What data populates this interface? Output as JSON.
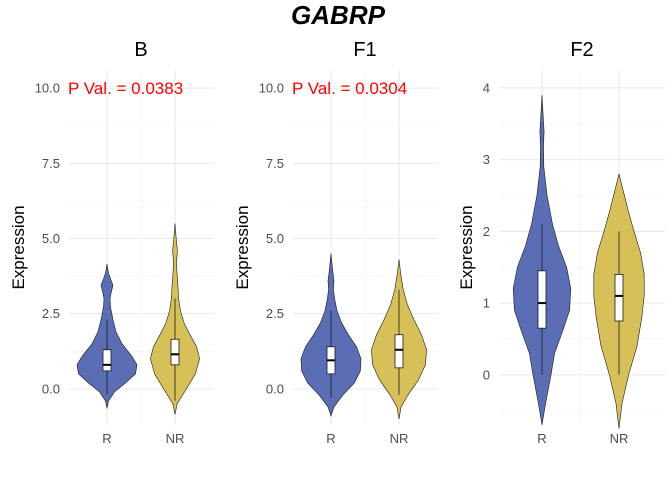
{
  "title": "GABRP",
  "ylabel": "Expression",
  "colors": {
    "R": "#5b6eb5",
    "NR": "#d7c057",
    "pval": "#ff0000"
  },
  "chart_data": [
    {
      "type": "violin",
      "panel": "B",
      "categories": [
        "R",
        "NR"
      ],
      "ylabel": "Expression",
      "ylim": [
        -1.2,
        10.6
      ],
      "yticks": [
        0.0,
        2.5,
        5.0,
        7.5,
        10.0
      ],
      "ytick_labels": [
        "0.0",
        "2.5",
        "5.0",
        "7.5",
        "10.0"
      ],
      "annotation": "P Val. = 0.0383",
      "series": [
        {
          "name": "R",
          "min": -0.65,
          "max": 4.15,
          "q1": 0.6,
          "median": 0.8,
          "q3": 1.3,
          "whisker_low": -0.2,
          "whisker_high": 2.3,
          "density": [
            [
              -0.65,
              0.0
            ],
            [
              -0.4,
              0.05
            ],
            [
              -0.1,
              0.25
            ],
            [
              0.2,
              0.62
            ],
            [
              0.5,
              0.95
            ],
            [
              0.8,
              1.0
            ],
            [
              1.1,
              0.82
            ],
            [
              1.5,
              0.5
            ],
            [
              1.9,
              0.3
            ],
            [
              2.3,
              0.2
            ],
            [
              2.7,
              0.12
            ],
            [
              3.0,
              0.1
            ],
            [
              3.2,
              0.14
            ],
            [
              3.45,
              0.2
            ],
            [
              3.65,
              0.12
            ],
            [
              3.85,
              0.05
            ],
            [
              4.15,
              0.0
            ]
          ]
        },
        {
          "name": "NR",
          "min": -0.85,
          "max": 5.5,
          "q1": 0.8,
          "median": 1.15,
          "q3": 1.65,
          "whisker_low": -0.4,
          "whisker_high": 3.0,
          "density": [
            [
              -0.85,
              0.0
            ],
            [
              -0.5,
              0.07
            ],
            [
              0.0,
              0.38
            ],
            [
              0.5,
              0.68
            ],
            [
              1.0,
              0.82
            ],
            [
              1.4,
              0.72
            ],
            [
              1.8,
              0.5
            ],
            [
              2.2,
              0.3
            ],
            [
              2.6,
              0.18
            ],
            [
              3.0,
              0.12
            ],
            [
              3.4,
              0.1
            ],
            [
              3.8,
              0.07
            ],
            [
              4.2,
              0.05
            ],
            [
              4.6,
              0.08
            ],
            [
              5.0,
              0.04
            ],
            [
              5.5,
              0.0
            ]
          ]
        }
      ]
    },
    {
      "type": "violin",
      "panel": "F1",
      "categories": [
        "R",
        "NR"
      ],
      "ylabel": "Expression",
      "ylim": [
        -1.2,
        10.6
      ],
      "yticks": [
        0.0,
        2.5,
        5.0,
        7.5,
        10.0
      ],
      "ytick_labels": [
        "0.0",
        "2.5",
        "5.0",
        "7.5",
        "10.0"
      ],
      "annotation": "P Val. = 0.0304",
      "series": [
        {
          "name": "R",
          "min": -0.9,
          "max": 4.5,
          "q1": 0.5,
          "median": 0.95,
          "q3": 1.4,
          "whisker_low": -0.3,
          "whisker_high": 2.6,
          "density": [
            [
              -0.9,
              0.0
            ],
            [
              -0.6,
              0.1
            ],
            [
              -0.2,
              0.4
            ],
            [
              0.2,
              0.78
            ],
            [
              0.6,
              0.98
            ],
            [
              1.0,
              1.0
            ],
            [
              1.4,
              0.85
            ],
            [
              1.8,
              0.58
            ],
            [
              2.2,
              0.35
            ],
            [
              2.6,
              0.2
            ],
            [
              3.0,
              0.12
            ],
            [
              3.3,
              0.08
            ],
            [
              3.6,
              0.1
            ],
            [
              3.9,
              0.06
            ],
            [
              4.2,
              0.03
            ],
            [
              4.5,
              0.0
            ]
          ]
        },
        {
          "name": "NR",
          "min": -1.0,
          "max": 4.3,
          "q1": 0.7,
          "median": 1.3,
          "q3": 1.8,
          "whisker_low": -0.2,
          "whisker_high": 3.3,
          "density": [
            [
              -1.0,
              0.0
            ],
            [
              -0.6,
              0.07
            ],
            [
              -0.2,
              0.3
            ],
            [
              0.3,
              0.65
            ],
            [
              0.8,
              0.88
            ],
            [
              1.3,
              0.92
            ],
            [
              1.8,
              0.75
            ],
            [
              2.3,
              0.5
            ],
            [
              2.8,
              0.28
            ],
            [
              3.3,
              0.14
            ],
            [
              3.8,
              0.06
            ],
            [
              4.3,
              0.0
            ]
          ]
        }
      ]
    },
    {
      "type": "violin",
      "panel": "F2",
      "categories": [
        "R",
        "NR"
      ],
      "ylabel": "Expression",
      "ylim": [
        -0.7,
        4.25
      ],
      "yticks": [
        0,
        1,
        2,
        3,
        4
      ],
      "ytick_labels": [
        "0",
        "1",
        "2",
        "3",
        "4"
      ],
      "series": [
        {
          "name": "R",
          "min": -0.7,
          "max": 3.9,
          "q1": 0.65,
          "median": 1.0,
          "q3": 1.45,
          "whisker_low": 0.0,
          "whisker_high": 2.1,
          "density": [
            [
              -0.7,
              0.0
            ],
            [
              -0.4,
              0.12
            ],
            [
              0.0,
              0.3
            ],
            [
              0.3,
              0.42
            ],
            [
              0.6,
              0.68
            ],
            [
              0.9,
              0.92
            ],
            [
              1.2,
              0.96
            ],
            [
              1.5,
              0.82
            ],
            [
              1.8,
              0.55
            ],
            [
              2.1,
              0.35
            ],
            [
              2.5,
              0.17
            ],
            [
              2.9,
              0.06
            ],
            [
              3.2,
              0.05
            ],
            [
              3.4,
              0.07
            ],
            [
              3.6,
              0.04
            ],
            [
              3.9,
              0.0
            ]
          ]
        },
        {
          "name": "NR",
          "min": -0.75,
          "max": 2.8,
          "q1": 0.75,
          "median": 1.1,
          "q3": 1.4,
          "whisker_low": 0.0,
          "whisker_high": 2.0,
          "density": [
            [
              -0.75,
              0.0
            ],
            [
              -0.4,
              0.1
            ],
            [
              0.0,
              0.32
            ],
            [
              0.4,
              0.6
            ],
            [
              0.8,
              0.76
            ],
            [
              1.1,
              0.84
            ],
            [
              1.4,
              0.84
            ],
            [
              1.7,
              0.72
            ],
            [
              2.0,
              0.5
            ],
            [
              2.3,
              0.3
            ],
            [
              2.6,
              0.12
            ],
            [
              2.8,
              0.0
            ]
          ]
        }
      ]
    }
  ]
}
